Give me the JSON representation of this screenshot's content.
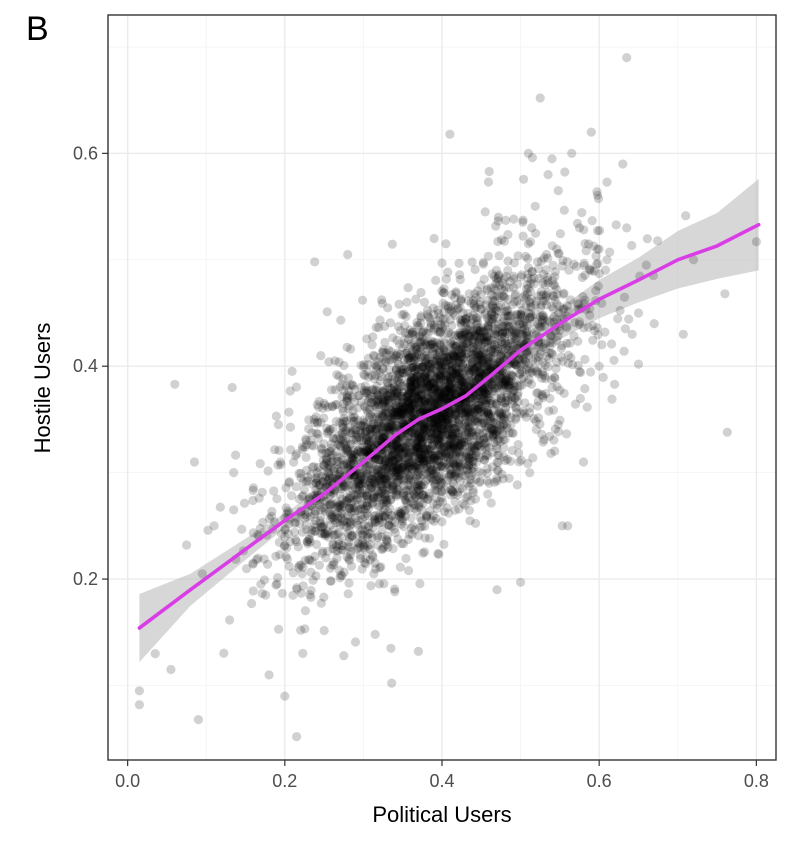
{
  "panel_label": "B",
  "colors": {
    "points": "#000000",
    "smooth_line": "#d93ee6",
    "confidence_band": "#bdbdbd",
    "grid": "#ebebeb",
    "panel_border": "#333333"
  },
  "chart_data": {
    "type": "scatter",
    "title": "",
    "xlabel": "Political Users",
    "ylabel": "Hostile Users",
    "xlim": [
      -0.025,
      0.825
    ],
    "ylim": [
      0.03,
      0.73
    ],
    "x_ticks": [
      0.0,
      0.2,
      0.4,
      0.6,
      0.8
    ],
    "x_tick_labels": [
      "0.0",
      "0.2",
      "0.4",
      "0.6",
      "0.8"
    ],
    "y_ticks": [
      0.2,
      0.4,
      0.6
    ],
    "y_tick_labels": [
      "0.2",
      "0.4",
      "0.6"
    ],
    "grid": true,
    "legend": "none",
    "series": [
      {
        "name": "users",
        "kind": "points",
        "alpha": 0.18,
        "values": [
          [
            0.015,
            0.095
          ],
          [
            0.015,
            0.082
          ],
          [
            0.035,
            0.13
          ],
          [
            0.055,
            0.115
          ],
          [
            0.06,
            0.383
          ],
          [
            0.09,
            0.068
          ],
          [
            0.085,
            0.31
          ],
          [
            0.075,
            0.232
          ],
          [
            0.095,
            0.205
          ],
          [
            0.11,
            0.25
          ],
          [
            0.135,
            0.3
          ],
          [
            0.133,
            0.38
          ],
          [
            0.135,
            0.265
          ],
          [
            0.18,
            0.11
          ],
          [
            0.2,
            0.09
          ],
          [
            0.215,
            0.052
          ],
          [
            0.222,
            0.205
          ],
          [
            0.238,
            0.498
          ],
          [
            0.275,
            0.377
          ],
          [
            0.275,
            0.128
          ],
          [
            0.28,
            0.505
          ],
          [
            0.315,
            0.148
          ],
          [
            0.335,
            0.135
          ],
          [
            0.34,
            0.188
          ],
          [
            0.37,
            0.132
          ],
          [
            0.39,
            0.52
          ],
          [
            0.405,
            0.515
          ],
          [
            0.4,
            0.497
          ],
          [
            0.41,
            0.618
          ],
          [
            0.455,
            0.545
          ],
          [
            0.46,
            0.583
          ],
          [
            0.47,
            0.19
          ],
          [
            0.5,
            0.197
          ],
          [
            0.51,
            0.515
          ],
          [
            0.51,
            0.6
          ],
          [
            0.515,
            0.596
          ],
          [
            0.525,
            0.652
          ],
          [
            0.535,
            0.58
          ],
          [
            0.54,
            0.595
          ],
          [
            0.548,
            0.565
          ],
          [
            0.553,
            0.25
          ],
          [
            0.56,
            0.25
          ],
          [
            0.565,
            0.6
          ],
          [
            0.575,
            0.53
          ],
          [
            0.59,
            0.62
          ],
          [
            0.61,
            0.5
          ],
          [
            0.61,
            0.573
          ],
          [
            0.63,
            0.59
          ],
          [
            0.635,
            0.69
          ],
          [
            0.635,
            0.53
          ],
          [
            0.642,
            0.43
          ],
          [
            0.65,
            0.45
          ],
          [
            0.66,
            0.495
          ],
          [
            0.67,
            0.44
          ],
          [
            0.707,
            0.43
          ],
          [
            0.72,
            0.5
          ],
          [
            0.76,
            0.468
          ],
          [
            0.763,
            0.338
          ],
          [
            0.8,
            0.517
          ],
          [
            0.575,
            0.395
          ],
          [
            0.6,
            0.4
          ],
          [
            0.65,
            0.402
          ],
          [
            0.58,
            0.31
          ],
          [
            0.55,
            0.44
          ],
          [
            0.52,
            0.43
          ]
        ]
      },
      {
        "name": "loess fit",
        "kind": "line",
        "x": [
          0.015,
          0.08,
          0.15,
          0.2,
          0.25,
          0.3,
          0.34,
          0.37,
          0.4,
          0.43,
          0.46,
          0.5,
          0.55,
          0.6,
          0.65,
          0.7,
          0.75,
          0.803
        ],
        "y": [
          0.154,
          0.19,
          0.228,
          0.255,
          0.28,
          0.31,
          0.335,
          0.35,
          0.36,
          0.372,
          0.39,
          0.415,
          0.44,
          0.463,
          0.481,
          0.5,
          0.513,
          0.533
        ],
        "lower": [
          0.122,
          0.175,
          0.218,
          0.248,
          0.273,
          0.304,
          0.329,
          0.345,
          0.355,
          0.366,
          0.382,
          0.404,
          0.425,
          0.445,
          0.46,
          0.473,
          0.482,
          0.49
        ],
        "upper": [
          0.186,
          0.205,
          0.238,
          0.262,
          0.287,
          0.316,
          0.341,
          0.355,
          0.365,
          0.378,
          0.398,
          0.426,
          0.455,
          0.481,
          0.502,
          0.527,
          0.544,
          0.576
        ]
      }
    ]
  }
}
